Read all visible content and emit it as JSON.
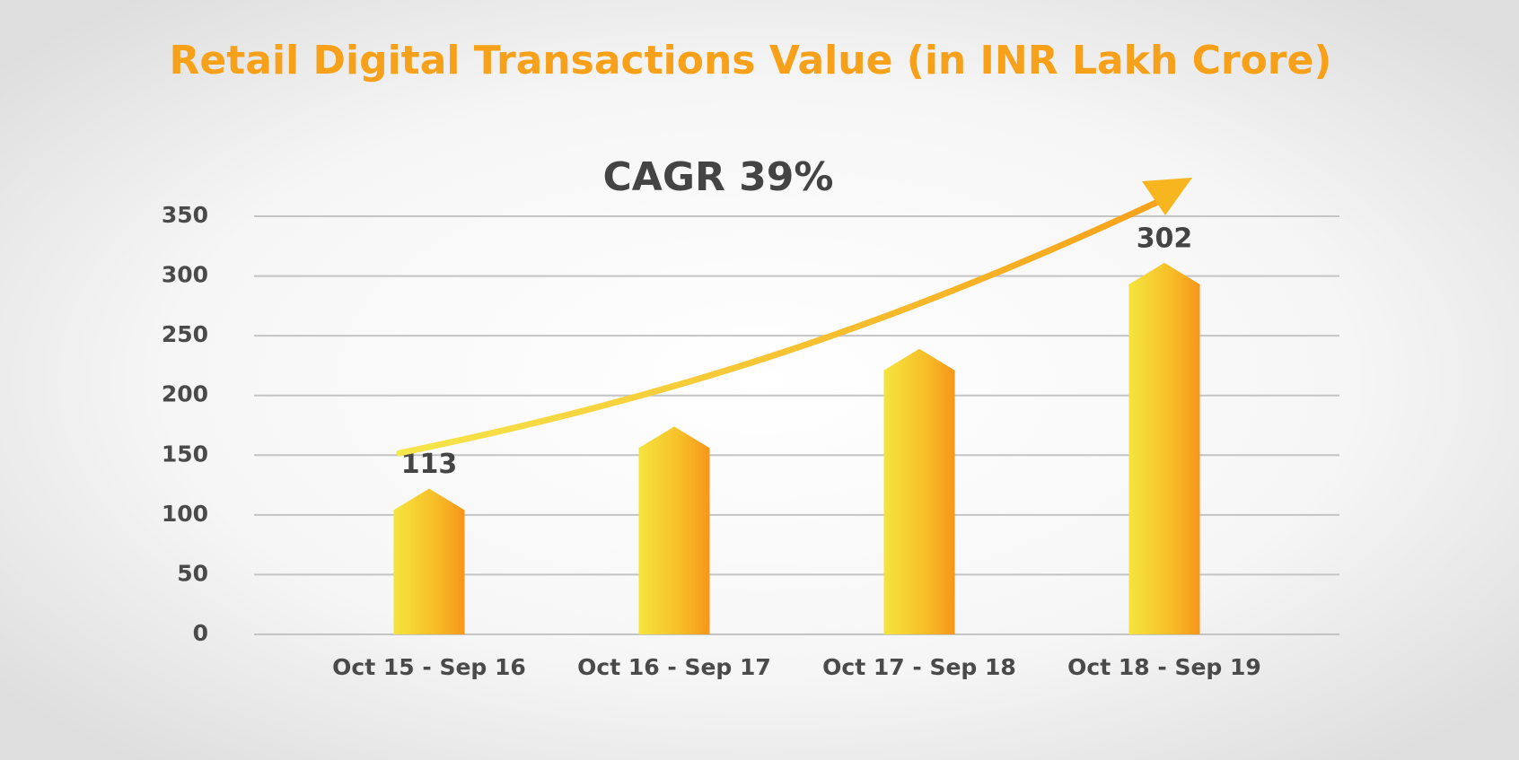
{
  "chart_data": {
    "type": "bar",
    "title": "Retail Digital Transactions Value (in INR Lakh Crore)",
    "annotation": "CAGR 39%",
    "categories": [
      "Oct 15 - Sep 16",
      "Oct 16 - Sep 17",
      "Oct 17 - Sep 18",
      "Oct 18 - Sep 19"
    ],
    "values": [
      113,
      165,
      230,
      302
    ],
    "value_labels": [
      "113",
      null,
      null,
      "302"
    ],
    "color": "#f7a11a",
    "ylim": [
      0,
      350
    ],
    "yticks": [
      0,
      50,
      100,
      150,
      200,
      250,
      300,
      350
    ],
    "grid": true
  }
}
